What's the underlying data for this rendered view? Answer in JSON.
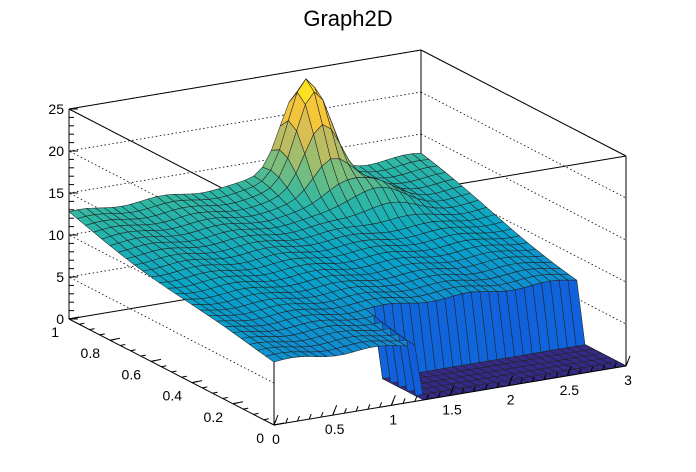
{
  "chart_data": {
    "type": "surface",
    "title": "Graph2D",
    "xlabel": "",
    "ylabel": "",
    "zlabel": "",
    "xlim": [
      0,
      3
    ],
    "ylim": [
      0,
      1
    ],
    "zlim": [
      0,
      25
    ],
    "x_ticks": [
      "0",
      "0.5",
      "1",
      "1.5",
      "2",
      "2.5",
      "3"
    ],
    "x_tick_values": [
      0,
      0.5,
      1,
      1.5,
      2,
      2.5,
      3
    ],
    "y_ticks": [
      "0",
      "0.2",
      "0.4",
      "0.6",
      "0.8",
      "1"
    ],
    "y_tick_values": [
      0,
      0.2,
      0.4,
      0.6,
      0.8,
      1
    ],
    "z_ticks": [
      "0",
      "5",
      "10",
      "15",
      "20",
      "25"
    ],
    "z_tick_values": [
      0,
      5,
      10,
      15,
      20,
      25
    ],
    "grid": true,
    "palette": [
      "#352a87",
      "#0f5cdd",
      "#1481d6",
      "#06a4ca",
      "#2eb7a4",
      "#87bf77",
      "#d1bb59",
      "#fec832",
      "#f9fb0e"
    ],
    "surface": {
      "rows": 25,
      "cols": 40,
      "peak": {
        "x": 1.95,
        "y": 0.95,
        "z": 23.6
      },
      "secondary_peak": {
        "x": 2.2,
        "y": 0.78,
        "z": 13.8
      },
      "z_at_x0_y1": 12.6,
      "z_at_x0_y0": 7.5,
      "z_near_front_right": 7.6,
      "zero_region": "x > 1.2 and y < 0.24"
    }
  }
}
